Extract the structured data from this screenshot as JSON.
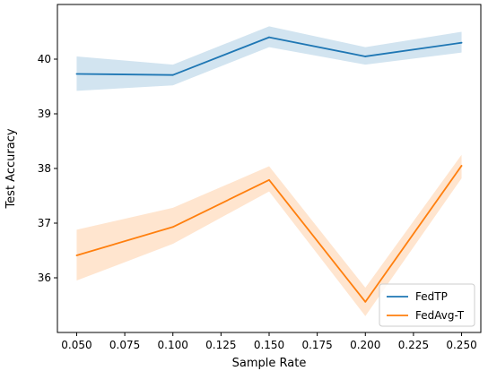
{
  "chart_data": {
    "type": "line",
    "xlabel": "Sample Rate",
    "ylabel": "Test Accuracy",
    "xlim": [
      0.04,
      0.26
    ],
    "ylim": [
      35.0,
      41.0
    ],
    "x_ticks": [
      "0.050",
      "0.075",
      "0.100",
      "0.125",
      "0.150",
      "0.175",
      "0.200",
      "0.225",
      "0.250"
    ],
    "y_ticks": [
      "36",
      "37",
      "38",
      "39",
      "40"
    ],
    "x": [
      0.05,
      0.1,
      0.15,
      0.2,
      0.25
    ],
    "series": [
      {
        "name": "FedTP",
        "color": "#1f77b4",
        "values": [
          39.73,
          39.71,
          40.4,
          40.05,
          40.3
        ],
        "lower": [
          39.42,
          39.52,
          40.22,
          39.9,
          40.12
        ],
        "upper": [
          40.05,
          39.9,
          40.6,
          40.22,
          40.5
        ]
      },
      {
        "name": "FedAvg-T",
        "color": "#ff7f0e",
        "values": [
          36.41,
          36.93,
          37.79,
          35.56,
          38.05
        ],
        "lower": [
          35.95,
          36.62,
          37.58,
          35.3,
          37.82
        ],
        "upper": [
          36.88,
          37.28,
          38.04,
          35.82,
          38.25
        ]
      }
    ],
    "legend_position": "lower-right",
    "grid": false
  }
}
